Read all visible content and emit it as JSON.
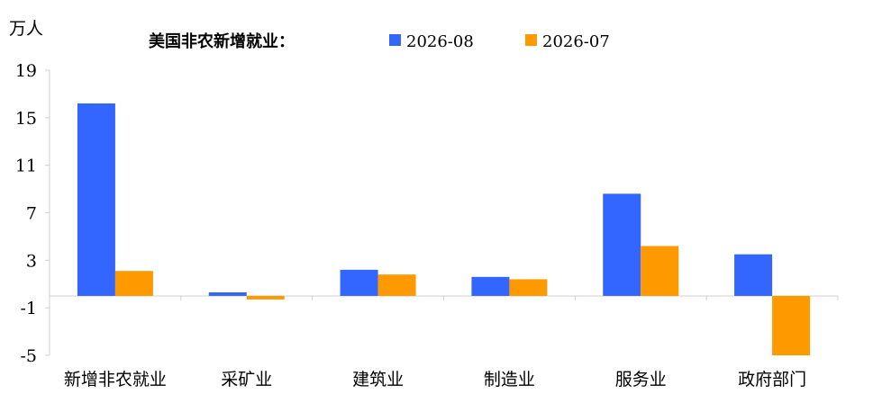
{
  "chart_data": {
    "type": "bar",
    "unit_label": "万人",
    "legend_title": "美国非农新增就业：",
    "categories": [
      "新增非农就业",
      "采矿业",
      "建筑业",
      "制造业",
      "服务业",
      "政府部门"
    ],
    "series": [
      {
        "name": "2026-08",
        "color": "#3366FF",
        "values": [
          16.2,
          0.3,
          2.2,
          1.6,
          8.6,
          3.5
        ]
      },
      {
        "name": "2026-07",
        "color": "#FF9900",
        "values": [
          2.1,
          -0.3,
          1.8,
          1.4,
          4.2,
          -5.0
        ]
      }
    ],
    "ylim": [
      -5,
      19
    ],
    "yticks": [
      "19",
      "15",
      "11",
      "7",
      "3",
      "-1",
      "-5"
    ],
    "ytick_values": [
      19,
      15,
      11,
      7,
      3,
      -1,
      -5
    ],
    "grid": false,
    "legend_position": "top"
  }
}
